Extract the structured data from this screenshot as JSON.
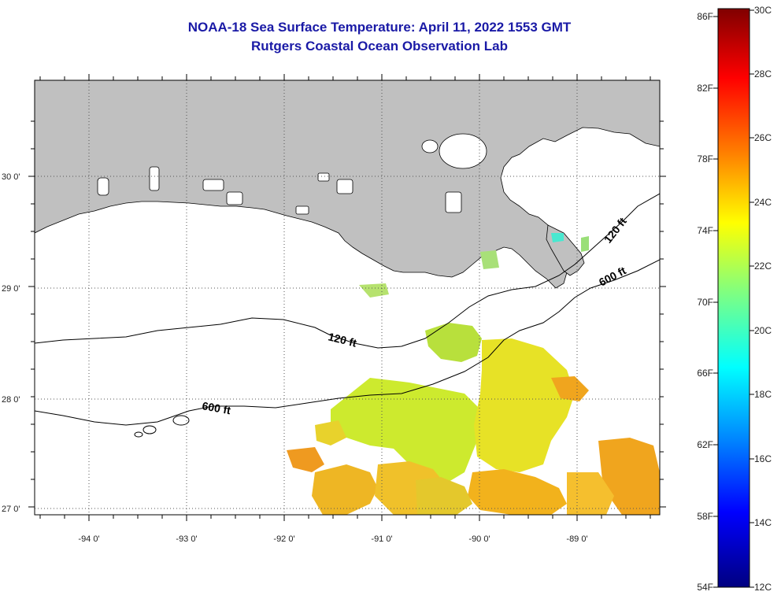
{
  "header": {
    "title_line1": "NOAA-18 Sea Surface Temperature:  April 11, 2022 1553 GMT",
    "title_line2": "Rutgers Coastal Ocean Observation Lab"
  },
  "map": {
    "longitude_labels": [
      "-94 0'",
      "-93 0'",
      "-92 0'",
      "-91 0'",
      "-90 0'",
      "-89 0'"
    ],
    "latitude_labels": [
      "30 0'",
      "29 0'",
      "28 0'",
      "27 0'"
    ],
    "contour_labels": {
      "c120_west": "120 ft",
      "c600_west": "600 ft",
      "c120_east": "120 ft",
      "c600_east": "600 ft"
    },
    "land_color": "#c0c0c0",
    "water_no_data_color": "#ffffff"
  },
  "colorbar": {
    "fahrenheit_labels": [
      "86F",
      "82F",
      "78F",
      "74F",
      "70F",
      "66F",
      "62F",
      "58F",
      "54F"
    ],
    "celsius_labels": [
      "30C",
      "28C",
      "26C",
      "24C",
      "22C",
      "20C",
      "18C",
      "16C",
      "14C",
      "12C"
    ],
    "gradient_colors": [
      "#800000",
      "#ff0000",
      "#ff8000",
      "#ffff00",
      "#80ff80",
      "#00ffff",
      "#0080ff",
      "#0000ff",
      "#000080"
    ]
  }
}
